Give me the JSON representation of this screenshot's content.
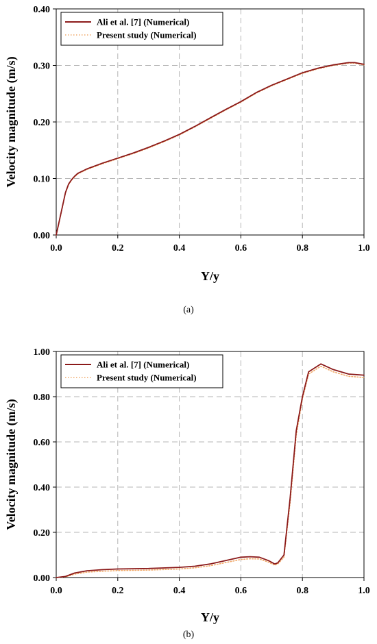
{
  "colors": {
    "ali": "#8b1a1a",
    "present": "#f0a868",
    "grid": "#b4b4b4",
    "axis": "#000000"
  },
  "chart_data": [
    {
      "type": "line",
      "caption": "(a)",
      "xlabel": "Y/y",
      "ylabel": "Velocity magnitude (m/s)",
      "xlim": [
        0,
        1
      ],
      "ylim": [
        0,
        0.4
      ],
      "xticks": [
        "0.0",
        "0.2",
        "0.4",
        "0.6",
        "0.8",
        "1.0"
      ],
      "yticks": [
        "0.00",
        "0.10",
        "0.20",
        "0.30",
        "0.40"
      ],
      "xtick_values": [
        0,
        0.2,
        0.4,
        0.6,
        0.8,
        1.0
      ],
      "ytick_values": [
        0,
        0.1,
        0.2,
        0.3,
        0.4
      ],
      "grid": true,
      "legend": "top-left",
      "series": [
        {
          "name": "Ali et al. [7] (Numerical)",
          "style": "solid",
          "x": [
            0,
            0.01,
            0.02,
            0.03,
            0.04,
            0.05,
            0.06,
            0.07,
            0.1,
            0.15,
            0.2,
            0.25,
            0.3,
            0.35,
            0.4,
            0.45,
            0.5,
            0.55,
            0.6,
            0.65,
            0.7,
            0.75,
            0.8,
            0.85,
            0.9,
            0.95,
            0.97,
            1.0
          ],
          "y": [
            0,
            0.025,
            0.05,
            0.075,
            0.09,
            0.098,
            0.104,
            0.109,
            0.117,
            0.127,
            0.136,
            0.145,
            0.155,
            0.166,
            0.178,
            0.192,
            0.207,
            0.222,
            0.236,
            0.252,
            0.265,
            0.276,
            0.287,
            0.295,
            0.301,
            0.305,
            0.305,
            0.302
          ]
        },
        {
          "name": "Present study (Numerical)",
          "style": "dotted",
          "x": [
            0,
            0.01,
            0.02,
            0.03,
            0.04,
            0.05,
            0.06,
            0.07,
            0.1,
            0.15,
            0.2,
            0.25,
            0.3,
            0.35,
            0.4,
            0.45,
            0.5,
            0.55,
            0.6,
            0.65,
            0.7,
            0.75,
            0.8,
            0.85,
            0.9,
            0.95,
            0.97,
            1.0
          ],
          "y": [
            0,
            0.024,
            0.049,
            0.074,
            0.089,
            0.097,
            0.103,
            0.108,
            0.116,
            0.126,
            0.135,
            0.144,
            0.154,
            0.165,
            0.177,
            0.191,
            0.206,
            0.221,
            0.235,
            0.251,
            0.264,
            0.275,
            0.286,
            0.294,
            0.3,
            0.304,
            0.304,
            0.301
          ]
        }
      ]
    },
    {
      "type": "line",
      "caption": "(b)",
      "xlabel": "Y/y",
      "ylabel": "Velocity magnitude (m/s)",
      "xlim": [
        0,
        1
      ],
      "ylim": [
        0,
        1
      ],
      "xticks": [
        "0.0",
        "0.2",
        "0.4",
        "0.6",
        "0.8",
        "1.0"
      ],
      "yticks": [
        "0.00",
        "0.20",
        "0.40",
        "0.60",
        "0.80",
        "1.00"
      ],
      "xtick_values": [
        0,
        0.2,
        0.4,
        0.6,
        0.8,
        1.0
      ],
      "ytick_values": [
        0,
        0.2,
        0.4,
        0.6,
        0.8,
        1.0
      ],
      "grid": true,
      "legend": "top-left",
      "series": [
        {
          "name": "Ali et al. [7] (Numerical)",
          "style": "solid",
          "x": [
            0,
            0.03,
            0.06,
            0.1,
            0.15,
            0.2,
            0.3,
            0.4,
            0.45,
            0.5,
            0.55,
            0.6,
            0.63,
            0.66,
            0.69,
            0.71,
            0.72,
            0.74,
            0.76,
            0.78,
            0.8,
            0.82,
            0.86,
            0.9,
            0.95,
            1.0
          ],
          "y": [
            0,
            0.005,
            0.02,
            0.03,
            0.035,
            0.038,
            0.04,
            0.045,
            0.05,
            0.06,
            0.075,
            0.09,
            0.092,
            0.09,
            0.075,
            0.06,
            0.065,
            0.1,
            0.35,
            0.65,
            0.8,
            0.91,
            0.945,
            0.92,
            0.9,
            0.895
          ]
        },
        {
          "name": "Present study (Numerical)",
          "style": "dotted",
          "x": [
            0,
            0.03,
            0.06,
            0.1,
            0.15,
            0.2,
            0.3,
            0.4,
            0.45,
            0.5,
            0.55,
            0.6,
            0.63,
            0.66,
            0.69,
            0.71,
            0.72,
            0.74,
            0.76,
            0.78,
            0.8,
            0.82,
            0.86,
            0.9,
            0.95,
            1.0
          ],
          "y": [
            0,
            0.003,
            0.015,
            0.024,
            0.028,
            0.031,
            0.033,
            0.038,
            0.043,
            0.052,
            0.066,
            0.08,
            0.083,
            0.082,
            0.068,
            0.055,
            0.06,
            0.09,
            0.33,
            0.63,
            0.79,
            0.9,
            0.935,
            0.91,
            0.89,
            0.885
          ]
        }
      ]
    }
  ]
}
